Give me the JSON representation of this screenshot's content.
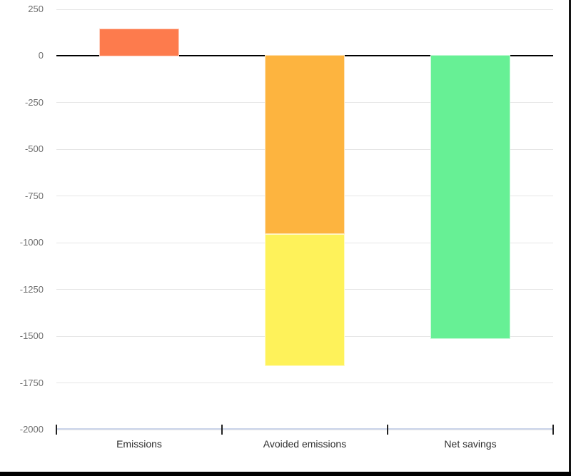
{
  "window": {
    "background": "#ffffff",
    "right_border_color": "#141414",
    "bottom_bar_color": "#000000"
  },
  "chart_data": {
    "type": "bar",
    "subtype": "stacked-column-waterfall",
    "title": "",
    "xlabel": "",
    "ylabel": "",
    "legend": "none",
    "grid": true,
    "categories": [
      "Emissions",
      "Avoided emissions",
      "Net savings"
    ],
    "bars": [
      {
        "category": "Emissions",
        "segments": [
          {
            "value": 145,
            "color": "#FD7B4D"
          }
        ]
      },
      {
        "category": "Avoided emissions",
        "segments": [
          {
            "value": -955,
            "color": "#FDB43F"
          },
          {
            "value": -705,
            "color": "#FEF25A"
          }
        ]
      },
      {
        "category": "Net savings",
        "segments": [
          {
            "value": -1515,
            "color": "#67F095"
          }
        ]
      }
    ],
    "y_ticks": [
      250,
      0,
      -250,
      -500,
      -750,
      -1000,
      -1250,
      -1500,
      -1750,
      -2000
    ],
    "ylim": [
      -2000,
      250
    ],
    "colors": {
      "gridline": "#e6e6e6",
      "zero_line": "#000000",
      "axis_line": "#ccd6eb",
      "tick_mark": "#222222",
      "y_label_text": "#6e6e6e",
      "x_label_text": "#2f2f2f"
    }
  }
}
